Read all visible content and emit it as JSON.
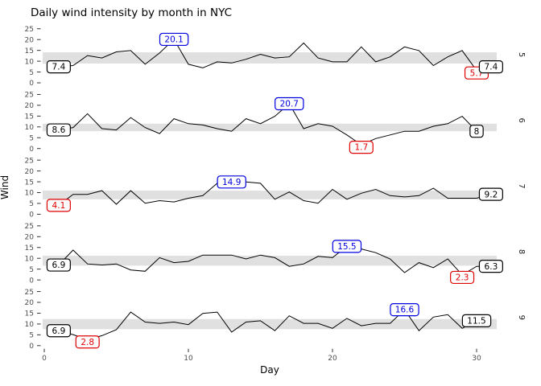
{
  "title": "Daily wind intensity by month in NYC",
  "axes": {
    "x_label": "Day",
    "y_label": "Wind",
    "x_ticks": [
      "0",
      "10",
      "20",
      "30"
    ],
    "y_ticks": [
      "0",
      "5",
      "10",
      "15",
      "20",
      "25"
    ]
  },
  "colors": {
    "line": "#000000",
    "band": "#e0e0e0",
    "max": "#0000e0",
    "min": "#e00000",
    "end": "#000000",
    "tick_text": "#4d4d4d",
    "tick_mark": "#333333",
    "strip_text": "#1a1a1a"
  },
  "chart_data": {
    "type": "line",
    "title": "Daily wind intensity by month in NYC",
    "xlabel": "Day",
    "ylabel": "Wind",
    "x_range": [
      0,
      31.5
    ],
    "y_tick_values": [
      0,
      5,
      10,
      15,
      20,
      25
    ],
    "x_tick_values": [
      0,
      10,
      20,
      30
    ],
    "facet_by": "Month (right strips)",
    "grid": "off",
    "facets": [
      {
        "month": "5",
        "band": [
          8.9,
          14.1
        ],
        "wind": [
          7.4,
          8.0,
          12.6,
          11.5,
          14.3,
          14.9,
          8.6,
          13.8,
          20.1,
          8.6,
          6.9,
          9.7,
          9.2,
          10.9,
          13.2,
          11.5,
          12.0,
          18.4,
          11.5,
          9.7,
          9.7,
          16.6,
          9.7,
          12.0,
          16.6,
          14.9,
          8.0,
          12.0,
          14.9,
          5.7,
          7.4
        ],
        "labels": [
          {
            "kind": "first",
            "day": 1,
            "value": 7.4,
            "text": "7.4",
            "color": "end"
          },
          {
            "kind": "max",
            "day": 9,
            "value": 20.1,
            "text": "20.1",
            "color": "max"
          },
          {
            "kind": "min",
            "day": 30,
            "value": 5.7,
            "text": "5.7",
            "color": "min"
          },
          {
            "kind": "last",
            "day": 31,
            "value": 7.4,
            "text": "7.4",
            "color": "end"
          }
        ]
      },
      {
        "month": "6",
        "band": [
          8.0,
          11.5
        ],
        "wind": [
          8.6,
          9.7,
          16.1,
          9.2,
          8.6,
          14.3,
          9.7,
          6.9,
          13.8,
          11.5,
          10.9,
          9.2,
          8.0,
          13.8,
          11.5,
          14.9,
          20.7,
          9.2,
          11.5,
          10.3,
          6.3,
          1.7,
          4.6,
          6.3,
          8.0,
          8.0,
          10.3,
          11.5,
          14.9,
          8.0
        ],
        "labels": [
          {
            "kind": "first",
            "day": 1,
            "value": 8.6,
            "text": "8.6",
            "color": "end"
          },
          {
            "kind": "max",
            "day": 17,
            "value": 20.7,
            "text": "20.7",
            "color": "max"
          },
          {
            "kind": "min",
            "day": 22,
            "value": 1.7,
            "text": "1.7",
            "color": "min"
          },
          {
            "kind": "last",
            "day": 30,
            "value": 8.0,
            "text": "8",
            "color": "end"
          }
        ]
      },
      {
        "month": "7",
        "band": [
          6.9,
          10.9
        ],
        "wind": [
          4.1,
          9.2,
          9.2,
          10.9,
          4.6,
          10.9,
          5.1,
          6.3,
          5.7,
          7.4,
          8.6,
          14.3,
          14.9,
          14.9,
          14.3,
          6.9,
          10.3,
          6.3,
          5.1,
          11.5,
          6.9,
          9.7,
          11.5,
          8.6,
          8.0,
          8.6,
          12.0,
          7.4,
          7.4,
          7.4,
          9.2
        ],
        "labels": [
          {
            "kind": "first",
            "day": 1,
            "value": 4.1,
            "text": "4.1",
            "color": "min"
          },
          {
            "kind": "max",
            "day": 13,
            "value": 14.9,
            "text": "14.9",
            "color": "max"
          },
          {
            "kind": "last",
            "day": 31,
            "value": 9.2,
            "text": "9.2",
            "color": "end"
          }
        ]
      },
      {
        "month": "8",
        "band": [
          6.6,
          11.2
        ],
        "wind": [
          6.9,
          13.8,
          7.4,
          6.9,
          7.4,
          4.6,
          4.0,
          10.3,
          8.0,
          8.6,
          11.5,
          11.5,
          11.5,
          9.7,
          11.5,
          10.3,
          6.3,
          7.4,
          10.9,
          10.3,
          15.5,
          14.3,
          12.6,
          9.7,
          3.4,
          8.0,
          5.7,
          9.7,
          2.3,
          6.3,
          6.3
        ],
        "labels": [
          {
            "kind": "first",
            "day": 1,
            "value": 6.9,
            "text": "6.9",
            "color": "end"
          },
          {
            "kind": "max",
            "day": 21,
            "value": 15.5,
            "text": "15.5",
            "color": "max"
          },
          {
            "kind": "min",
            "day": 29,
            "value": 2.3,
            "text": "2.3",
            "color": "min"
          },
          {
            "kind": "last",
            "day": 31,
            "value": 6.3,
            "text": "6.3",
            "color": "end"
          }
        ]
      },
      {
        "month": "9",
        "band": [
          7.6,
          12.3
        ],
        "wind": [
          6.9,
          5.1,
          2.8,
          4.6,
          7.4,
          15.5,
          10.9,
          10.3,
          10.9,
          9.7,
          14.9,
          15.5,
          6.3,
          10.9,
          11.5,
          6.9,
          13.8,
          10.3,
          10.3,
          8.0,
          12.6,
          9.2,
          10.3,
          10.3,
          16.6,
          6.9,
          13.2,
          14.3,
          8.0,
          11.5
        ],
        "labels": [
          {
            "kind": "first",
            "day": 1,
            "value": 6.9,
            "text": "6.9",
            "color": "end"
          },
          {
            "kind": "min",
            "day": 3,
            "value": 2.8,
            "text": "2.8",
            "color": "min"
          },
          {
            "kind": "max",
            "day": 25,
            "value": 16.6,
            "text": "16.6",
            "color": "max"
          },
          {
            "kind": "last",
            "day": 30,
            "value": 11.5,
            "text": "11.5",
            "color": "end"
          }
        ]
      }
    ]
  }
}
